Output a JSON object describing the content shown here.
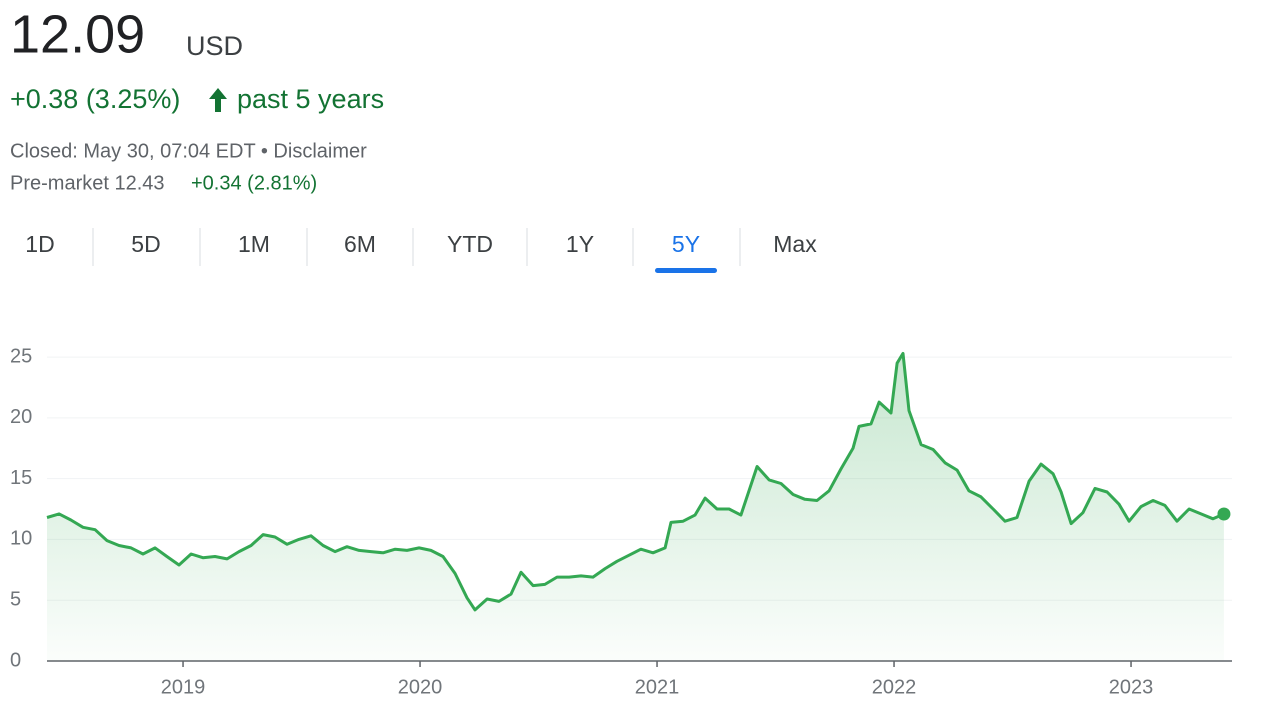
{
  "header": {
    "price": "12.09",
    "currency": "USD",
    "change": "+0.38 (3.25%)",
    "period": "past 5 years",
    "status": "Closed: May 30, 07:04 EDT • Disclaimer",
    "premarket": "Pre-market 12.43",
    "premarket_change": "+0.34 (2.81%)"
  },
  "tabs": {
    "items": [
      "1D",
      "5D",
      "1M",
      "6M",
      "YTD",
      "1Y",
      "5Y",
      "Max"
    ],
    "selected": 6
  },
  "chart_data": {
    "type": "line",
    "color": "#34a853",
    "x": [
      2018.426,
      2018.477,
      2018.527,
      2018.578,
      2018.629,
      2018.679,
      2018.73,
      2018.781,
      2018.831,
      2018.882,
      2018.932,
      2018.983,
      2019.034,
      2019.084,
      2019.135,
      2019.186,
      2019.236,
      2019.287,
      2019.338,
      2019.388,
      2019.439,
      2019.489,
      2019.54,
      2019.591,
      2019.641,
      2019.692,
      2019.743,
      2019.793,
      2019.844,
      2019.895,
      2019.945,
      2019.996,
      2020.046,
      2020.097,
      2020.148,
      2020.198,
      2020.232,
      2020.283,
      2020.333,
      2020.384,
      2020.426,
      2020.477,
      2020.527,
      2020.578,
      2020.629,
      2020.679,
      2020.73,
      2020.781,
      2020.831,
      2020.882,
      2020.932,
      2020.983,
      2021.034,
      2021.059,
      2021.11,
      2021.16,
      2021.203,
      2021.253,
      2021.304,
      2021.354,
      2021.422,
      2021.473,
      2021.523,
      2021.574,
      2021.624,
      2021.675,
      2021.726,
      2021.776,
      2021.827,
      2021.852,
      2021.903,
      2021.937,
      2021.987,
      2022.013,
      2022.038,
      2022.063,
      2022.114,
      2022.165,
      2022.215,
      2022.266,
      2022.316,
      2022.367,
      2022.418,
      2022.468,
      2022.519,
      2022.57,
      2022.62,
      2022.671,
      2022.705,
      2022.747,
      2022.797,
      2022.848,
      2022.899,
      2022.949,
      2022.992,
      2023.042,
      2023.093,
      2023.143,
      2023.194,
      2023.245,
      2023.295,
      2023.346,
      2023.392
    ],
    "values": [
      11.8,
      12.1,
      11.6,
      11.0,
      10.8,
      9.9,
      9.5,
      9.3,
      8.8,
      9.3,
      8.6,
      7.9,
      8.8,
      8.5,
      8.6,
      8.4,
      9.0,
      9.5,
      10.4,
      10.2,
      9.6,
      10.0,
      10.3,
      9.5,
      9.0,
      9.4,
      9.1,
      9.0,
      8.9,
      9.2,
      9.1,
      9.3,
      9.1,
      8.6,
      7.2,
      5.2,
      4.2,
      5.1,
      4.9,
      5.5,
      7.3,
      6.2,
      6.3,
      6.9,
      6.9,
      7.0,
      6.9,
      7.6,
      8.2,
      8.7,
      9.2,
      8.9,
      9.3,
      11.4,
      11.5,
      12.0,
      13.4,
      12.5,
      12.5,
      12.0,
      16.0,
      14.9,
      14.6,
      13.7,
      13.3,
      13.2,
      14.0,
      15.8,
      17.5,
      19.3,
      19.5,
      21.3,
      20.4,
      24.5,
      25.3,
      20.6,
      17.8,
      17.4,
      16.3,
      15.7,
      14.0,
      13.5,
      12.5,
      11.5,
      11.8,
      14.8,
      16.2,
      15.4,
      13.9,
      11.3,
      12.2,
      14.2,
      13.9,
      12.9,
      11.5,
      12.7,
      13.2,
      12.8,
      11.5,
      12.5,
      12.1,
      11.7,
      12.09
    ],
    "xlim": [
      2018.426,
      2023.426
    ],
    "xticks": [
      2019,
      2020,
      2021,
      2022,
      2023
    ],
    "ylim": [
      0,
      25.5
    ],
    "yticks": [
      0,
      5,
      10,
      15,
      20,
      25
    ],
    "grid": true
  }
}
